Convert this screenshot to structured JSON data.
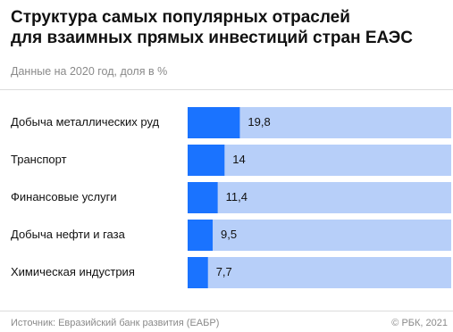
{
  "title_lines": [
    "Структура самых популярных отраслей",
    "для взаимных прямых инвестиций стран ЕАЭС"
  ],
  "subtitle": "Данные на 2020 год, доля в %",
  "source": "Источник: Евразийский банк развития (ЕАБР)",
  "copyright": "© РБК, 2021",
  "colors": {
    "bar": "#1a73ff",
    "track": "#b7cff9",
    "text": "#111111"
  },
  "chart_data": {
    "type": "bar",
    "orientation": "horizontal",
    "categories": [
      "Добыча металлических руд",
      "Транспорт",
      "Финансовые услуги",
      "Добыча нефти и газа",
      "Химическая индустрия"
    ],
    "values": [
      19.8,
      14,
      11.4,
      9.5,
      7.7
    ],
    "value_labels": [
      "19,8",
      "14",
      "11,4",
      "9,5",
      "7,7"
    ],
    "xlim": [
      0,
      100
    ],
    "unit": "%",
    "grid": false,
    "legend": "none"
  }
}
